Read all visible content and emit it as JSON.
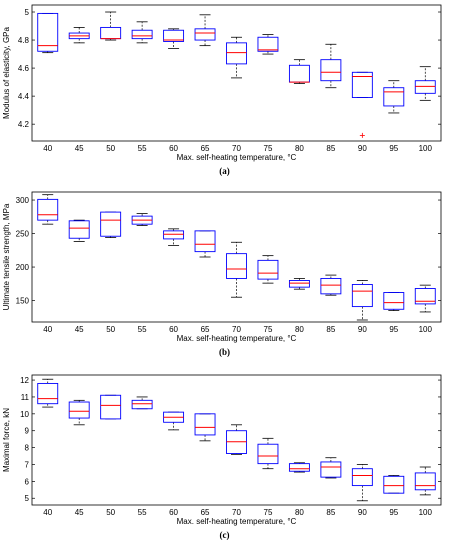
{
  "chart_data": [
    {
      "type": "boxplot",
      "panel_label": "(a)",
      "xlabel": "Max. self-heating temperature, °C",
      "ylabel": "Modulus of elasticity, GPa",
      "categories": [
        "40",
        "45",
        "50",
        "55",
        "60",
        "65",
        "70",
        "75",
        "80",
        "85",
        "90",
        "95",
        "100"
      ],
      "ylim": [
        4.08,
        5.05
      ],
      "yticks": [
        4.2,
        4.4,
        4.6,
        4.8,
        5
      ],
      "ytick_labels": [
        "4.2",
        "4.4",
        "4.6",
        "4.8",
        "5"
      ],
      "box_color": "#0000ff",
      "median_color": "#ff0000",
      "whisker_color": "#000000",
      "boxes": [
        {
          "min": 4.71,
          "q1": 4.72,
          "median": 4.76,
          "q3": 4.99,
          "max": 4.99,
          "outliers": []
        },
        {
          "min": 4.78,
          "q1": 4.81,
          "median": 4.83,
          "q3": 4.85,
          "max": 4.89,
          "outliers": []
        },
        {
          "min": 4.8,
          "q1": 4.81,
          "median": 4.81,
          "q3": 4.89,
          "max": 5.0,
          "outliers": []
        },
        {
          "min": 4.78,
          "q1": 4.81,
          "median": 4.83,
          "q3": 4.87,
          "max": 4.93,
          "outliers": []
        },
        {
          "min": 4.74,
          "q1": 4.79,
          "median": 4.8,
          "q3": 4.87,
          "max": 4.88,
          "outliers": []
        },
        {
          "min": 4.76,
          "q1": 4.8,
          "median": 4.85,
          "q3": 4.88,
          "max": 4.98,
          "outliers": []
        },
        {
          "min": 4.53,
          "q1": 4.63,
          "median": 4.71,
          "q3": 4.78,
          "max": 4.82,
          "outliers": []
        },
        {
          "min": 4.7,
          "q1": 4.72,
          "median": 4.73,
          "q3": 4.82,
          "max": 4.84,
          "outliers": []
        },
        {
          "min": 4.49,
          "q1": 4.5,
          "median": 4.5,
          "q3": 4.62,
          "max": 4.66,
          "outliers": []
        },
        {
          "min": 4.46,
          "q1": 4.51,
          "median": 4.57,
          "q3": 4.66,
          "max": 4.77,
          "outliers": []
        },
        {
          "min": 4.39,
          "q1": 4.39,
          "median": 4.54,
          "q3": 4.57,
          "max": 4.57,
          "outliers": [
            4.12
          ]
        },
        {
          "min": 4.28,
          "q1": 4.33,
          "median": 4.43,
          "q3": 4.46,
          "max": 4.51,
          "outliers": []
        },
        {
          "min": 4.37,
          "q1": 4.42,
          "median": 4.47,
          "q3": 4.51,
          "max": 4.61,
          "outliers": []
        }
      ]
    },
    {
      "type": "boxplot",
      "panel_label": "(b)",
      "xlabel": "Max. self-heating temperature, °C",
      "ylabel": "Ultimate tensile strength, MPa",
      "categories": [
        "40",
        "45",
        "50",
        "55",
        "60",
        "65",
        "70",
        "75",
        "80",
        "85",
        "90",
        "95",
        "100"
      ],
      "ylim": [
        118,
        312
      ],
      "yticks": [
        150,
        200,
        250,
        300
      ],
      "ytick_labels": [
        "150",
        "200",
        "250",
        "300"
      ],
      "box_color": "#0000ff",
      "median_color": "#ff0000",
      "whisker_color": "#000000",
      "boxes": [
        {
          "min": 264,
          "q1": 270,
          "median": 278,
          "q3": 301,
          "max": 308,
          "outliers": []
        },
        {
          "min": 238,
          "q1": 243,
          "median": 258,
          "q3": 269,
          "max": 270,
          "outliers": []
        },
        {
          "min": 244,
          "q1": 246,
          "median": 270,
          "q3": 282,
          "max": 282,
          "outliers": []
        },
        {
          "min": 262,
          "q1": 264,
          "median": 270,
          "q3": 276,
          "max": 280,
          "outliers": []
        },
        {
          "min": 232,
          "q1": 242,
          "median": 249,
          "q3": 254,
          "max": 257,
          "outliers": []
        },
        {
          "min": 215,
          "q1": 223,
          "median": 234,
          "q3": 254,
          "max": 254,
          "outliers": []
        },
        {
          "min": 155,
          "q1": 183,
          "median": 197,
          "q3": 220,
          "max": 237,
          "outliers": []
        },
        {
          "min": 176,
          "q1": 182,
          "median": 191,
          "q3": 210,
          "max": 217,
          "outliers": []
        },
        {
          "min": 167,
          "q1": 170,
          "median": 176,
          "q3": 180,
          "max": 183,
          "outliers": []
        },
        {
          "min": 158,
          "q1": 160,
          "median": 173,
          "q3": 183,
          "max": 188,
          "outliers": []
        },
        {
          "min": 121,
          "q1": 141,
          "median": 164,
          "q3": 174,
          "max": 180,
          "outliers": []
        },
        {
          "min": 135,
          "q1": 137,
          "median": 147,
          "q3": 162,
          "max": 162,
          "outliers": []
        },
        {
          "min": 133,
          "q1": 145,
          "median": 149,
          "q3": 168,
          "max": 173,
          "outliers": []
        }
      ]
    },
    {
      "type": "boxplot",
      "panel_label": "(c)",
      "xlabel": "Max. self-heating temperature, °C",
      "ylabel": "Maximal force, kN",
      "categories": [
        "40",
        "45",
        "50",
        "55",
        "60",
        "65",
        "70",
        "75",
        "80",
        "85",
        "90",
        "95",
        "100"
      ],
      "ylim": [
        4.6,
        12.3
      ],
      "yticks": [
        5,
        6,
        7,
        8,
        9,
        10,
        11,
        12
      ],
      "ytick_labels": [
        "5",
        "6",
        "7",
        "8",
        "9",
        "10",
        "11",
        "12"
      ],
      "box_color": "#0000ff",
      "median_color": "#ff0000",
      "whisker_color": "#000000",
      "boxes": [
        {
          "min": 10.4,
          "q1": 10.6,
          "median": 10.9,
          "q3": 11.8,
          "max": 12.05,
          "outliers": []
        },
        {
          "min": 9.35,
          "q1": 9.75,
          "median": 10.15,
          "q3": 10.7,
          "max": 10.8,
          "outliers": []
        },
        {
          "min": 9.7,
          "q1": 9.7,
          "median": 10.5,
          "q3": 11.1,
          "max": 11.1,
          "outliers": []
        },
        {
          "min": 10.3,
          "q1": 10.3,
          "median": 10.6,
          "q3": 10.8,
          "max": 11.0,
          "outliers": []
        },
        {
          "min": 9.05,
          "q1": 9.5,
          "median": 9.8,
          "q3": 10.1,
          "max": 10.1,
          "outliers": []
        },
        {
          "min": 8.4,
          "q1": 8.75,
          "median": 9.2,
          "q3": 10.0,
          "max": 10.0,
          "outliers": []
        },
        {
          "min": 7.6,
          "q1": 7.65,
          "median": 8.35,
          "q3": 9.0,
          "max": 9.35,
          "outliers": []
        },
        {
          "min": 6.75,
          "q1": 7.05,
          "median": 7.5,
          "q3": 8.2,
          "max": 8.55,
          "outliers": []
        },
        {
          "min": 6.55,
          "q1": 6.6,
          "median": 6.75,
          "q3": 7.05,
          "max": 7.1,
          "outliers": []
        },
        {
          "min": 6.2,
          "q1": 6.25,
          "median": 6.85,
          "q3": 7.15,
          "max": 7.4,
          "outliers": []
        },
        {
          "min": 4.85,
          "q1": 5.75,
          "median": 6.35,
          "q3": 6.75,
          "max": 7.0,
          "outliers": []
        },
        {
          "min": 5.3,
          "q1": 5.3,
          "median": 5.75,
          "q3": 6.3,
          "max": 6.35,
          "outliers": []
        },
        {
          "min": 5.2,
          "q1": 5.5,
          "median": 5.75,
          "q3": 6.5,
          "max": 6.85,
          "outliers": []
        }
      ]
    }
  ]
}
